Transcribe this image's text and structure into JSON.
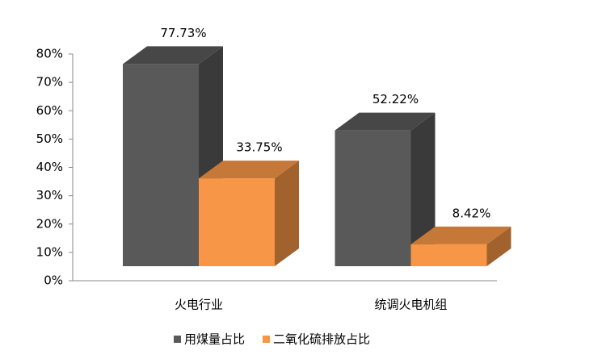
{
  "chart_data": {
    "type": "bar3d",
    "categories": [
      "火电行业",
      "统调火电机组"
    ],
    "series": [
      {
        "name": "用煤量占比",
        "color": "#595959",
        "values": [
          77.73,
          52.22
        ],
        "value_labels": [
          "77.73%",
          "52.22%"
        ]
      },
      {
        "name": "二氧化硫排放占比",
        "color": "#f79646",
        "values": [
          33.75,
          8.42
        ],
        "value_labels": [
          "33.75%",
          "8.42%"
        ]
      }
    ],
    "ylim": [
      0,
      80
    ],
    "yticks": [
      {
        "value": 0,
        "label": "0%"
      },
      {
        "value": 10,
        "label": "10%"
      },
      {
        "value": 20,
        "label": "20%"
      },
      {
        "value": 30,
        "label": "30%"
      },
      {
        "value": 40,
        "label": "40%"
      },
      {
        "value": 50,
        "label": "50%"
      },
      {
        "value": 60,
        "label": "60%"
      },
      {
        "value": 70,
        "label": "70%"
      },
      {
        "value": 80,
        "label": "80%"
      }
    ],
    "legend": "bottom"
  }
}
